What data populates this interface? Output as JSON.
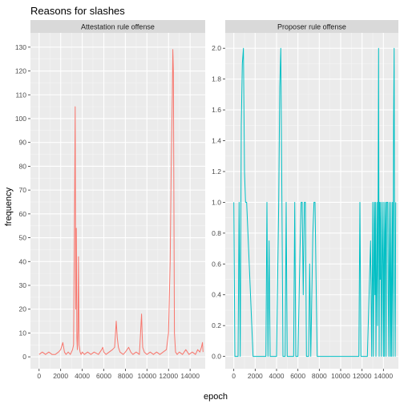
{
  "colors": {
    "panel_bg": "#ebebeb",
    "grid_major": "#ffffff",
    "strip_bg": "#d9d9d9",
    "text": "#1a1a1a",
    "tick_text": "#4d4d4d"
  },
  "chart_data": {
    "type": "line",
    "title": "Reasons for slashes",
    "xlabel": "epoch",
    "ylabel": "frequency",
    "legend": "none",
    "grid": true,
    "facets": [
      {
        "name": "Attestation rule offense",
        "color": "#f8766d",
        "xlim": [
          -800,
          15400
        ],
        "ylim": [
          -5,
          136
        ],
        "xticks": [
          0,
          2000,
          4000,
          6000,
          8000,
          10000,
          12000,
          14000
        ],
        "yticks": [
          0,
          10,
          20,
          30,
          40,
          50,
          60,
          70,
          80,
          90,
          100,
          110,
          120,
          130
        ],
        "points": [
          [
            0,
            1
          ],
          [
            300,
            2
          ],
          [
            600,
            1
          ],
          [
            900,
            2
          ],
          [
            1200,
            1
          ],
          [
            1500,
            1
          ],
          [
            1800,
            2
          ],
          [
            2000,
            3
          ],
          [
            2200,
            6
          ],
          [
            2350,
            2
          ],
          [
            2500,
            1
          ],
          [
            2700,
            2
          ],
          [
            2900,
            1
          ],
          [
            3100,
            3
          ],
          [
            3200,
            5
          ],
          [
            3300,
            72
          ],
          [
            3350,
            105
          ],
          [
            3400,
            20
          ],
          [
            3450,
            54
          ],
          [
            3500,
            8
          ],
          [
            3550,
            3
          ],
          [
            3600,
            12
          ],
          [
            3650,
            42
          ],
          [
            3700,
            5
          ],
          [
            3800,
            2
          ],
          [
            3900,
            1
          ],
          [
            4000,
            2
          ],
          [
            4200,
            1
          ],
          [
            4500,
            2
          ],
          [
            4800,
            1
          ],
          [
            5100,
            2
          ],
          [
            5500,
            1
          ],
          [
            5800,
            3
          ],
          [
            5900,
            4
          ],
          [
            6000,
            2
          ],
          [
            6200,
            1
          ],
          [
            6500,
            2
          ],
          [
            6800,
            3
          ],
          [
            7000,
            4
          ],
          [
            7150,
            15
          ],
          [
            7250,
            8
          ],
          [
            7350,
            4
          ],
          [
            7500,
            2
          ],
          [
            7800,
            1
          ],
          [
            8000,
            2
          ],
          [
            8300,
            4
          ],
          [
            8500,
            2
          ],
          [
            8700,
            1
          ],
          [
            9000,
            2
          ],
          [
            9300,
            1
          ],
          [
            9500,
            18
          ],
          [
            9550,
            10
          ],
          [
            9600,
            4
          ],
          [
            9750,
            2
          ],
          [
            10000,
            1
          ],
          [
            10300,
            2
          ],
          [
            10600,
            1
          ],
          [
            10900,
            2
          ],
          [
            11200,
            1
          ],
          [
            11500,
            2
          ],
          [
            11800,
            3
          ],
          [
            12000,
            10
          ],
          [
            12150,
            40
          ],
          [
            12250,
            80
          ],
          [
            12350,
            110
          ],
          [
            12400,
            129
          ],
          [
            12450,
            120
          ],
          [
            12500,
            60
          ],
          [
            12550,
            10
          ],
          [
            12650,
            2
          ],
          [
            12800,
            1
          ],
          [
            13000,
            2
          ],
          [
            13300,
            1
          ],
          [
            13600,
            3
          ],
          [
            13900,
            1
          ],
          [
            14200,
            2
          ],
          [
            14500,
            1
          ],
          [
            14700,
            3
          ],
          [
            14900,
            2
          ],
          [
            15050,
            4
          ],
          [
            15150,
            6
          ],
          [
            15200,
            2
          ]
        ]
      },
      {
        "name": "Proposer rule offense",
        "color": "#00bfc4",
        "xlim": [
          -800,
          15400
        ],
        "ylim": [
          -0.08,
          2.1
        ],
        "xticks": [
          0,
          2000,
          4000,
          6000,
          8000,
          10000,
          12000,
          14000
        ],
        "yticks": [
          0.0,
          0.2,
          0.4,
          0.6,
          0.8,
          1.0,
          1.2,
          1.4,
          1.6,
          1.8,
          2.0
        ],
        "ytick_labels": [
          "0.0",
          "0.2",
          "0.4",
          "0.6",
          "0.8",
          "1.0",
          "1.2",
          "1.4",
          "1.6",
          "1.8",
          "2.0"
        ],
        "points": [
          [
            0,
            1
          ],
          [
            100,
            0
          ],
          [
            200,
            0
          ],
          [
            400,
            0
          ],
          [
            500,
            1
          ],
          [
            600,
            0
          ],
          [
            700,
            1.5
          ],
          [
            800,
            1.9
          ],
          [
            900,
            2
          ],
          [
            1000,
            1.2
          ],
          [
            1100,
            1
          ],
          [
            1200,
            1
          ],
          [
            1800,
            0
          ],
          [
            2300,
            0
          ],
          [
            3000,
            0
          ],
          [
            3100,
            1
          ],
          [
            3200,
            0
          ],
          [
            3300,
            0.75
          ],
          [
            3400,
            0
          ],
          [
            3500,
            0
          ],
          [
            4000,
            0
          ],
          [
            4200,
            1
          ],
          [
            4300,
            1.75
          ],
          [
            4400,
            2
          ],
          [
            4500,
            1
          ],
          [
            4600,
            0
          ],
          [
            4800,
            0
          ],
          [
            4900,
            1
          ],
          [
            5000,
            0
          ],
          [
            5300,
            0
          ],
          [
            5600,
            0
          ],
          [
            5700,
            1
          ],
          [
            5800,
            0
          ],
          [
            6000,
            0
          ],
          [
            6200,
            0.7
          ],
          [
            6300,
            1
          ],
          [
            6400,
            1
          ],
          [
            6500,
            0.4
          ],
          [
            6600,
            1
          ],
          [
            6700,
            1
          ],
          [
            6800,
            0
          ],
          [
            7000,
            0
          ],
          [
            7100,
            0.6
          ],
          [
            7200,
            0
          ],
          [
            7400,
            0.8
          ],
          [
            7500,
            1
          ],
          [
            7600,
            1
          ],
          [
            7700,
            0.5
          ],
          [
            7800,
            0
          ],
          [
            8500,
            0
          ],
          [
            9500,
            0
          ],
          [
            10500,
            0
          ],
          [
            11500,
            0
          ],
          [
            11700,
            0
          ],
          [
            11800,
            1
          ],
          [
            11900,
            0
          ],
          [
            12200,
            0
          ],
          [
            12500,
            0
          ],
          [
            12800,
            0.75
          ],
          [
            12900,
            0
          ],
          [
            13000,
            1
          ],
          [
            13050,
            0
          ],
          [
            13150,
            1
          ],
          [
            13200,
            0.4
          ],
          [
            13250,
            1
          ],
          [
            13300,
            0
          ],
          [
            13400,
            1
          ],
          [
            13450,
            0.2
          ],
          [
            13500,
            1
          ],
          [
            13550,
            2
          ],
          [
            13600,
            0
          ],
          [
            13650,
            1
          ],
          [
            13700,
            0.5
          ],
          [
            13750,
            1
          ],
          [
            13800,
            0
          ],
          [
            13850,
            0.4
          ],
          [
            13900,
            1
          ],
          [
            13950,
            0.6
          ],
          [
            14000,
            0
          ],
          [
            14050,
            1
          ],
          [
            14100,
            0
          ],
          [
            14150,
            0.8
          ],
          [
            14200,
            1
          ],
          [
            14250,
            0
          ],
          [
            14300,
            1
          ],
          [
            14400,
            1
          ],
          [
            14450,
            0.4
          ],
          [
            14500,
            0
          ],
          [
            14550,
            1
          ],
          [
            14600,
            0.6
          ],
          [
            14650,
            0
          ],
          [
            14700,
            1
          ],
          [
            14750,
            0
          ],
          [
            14800,
            0.5
          ],
          [
            14850,
            1
          ],
          [
            14900,
            0
          ],
          [
            14950,
            1.5
          ],
          [
            15000,
            2
          ],
          [
            15050,
            0.5
          ],
          [
            15100,
            0
          ],
          [
            15150,
            1
          ]
        ]
      }
    ]
  }
}
